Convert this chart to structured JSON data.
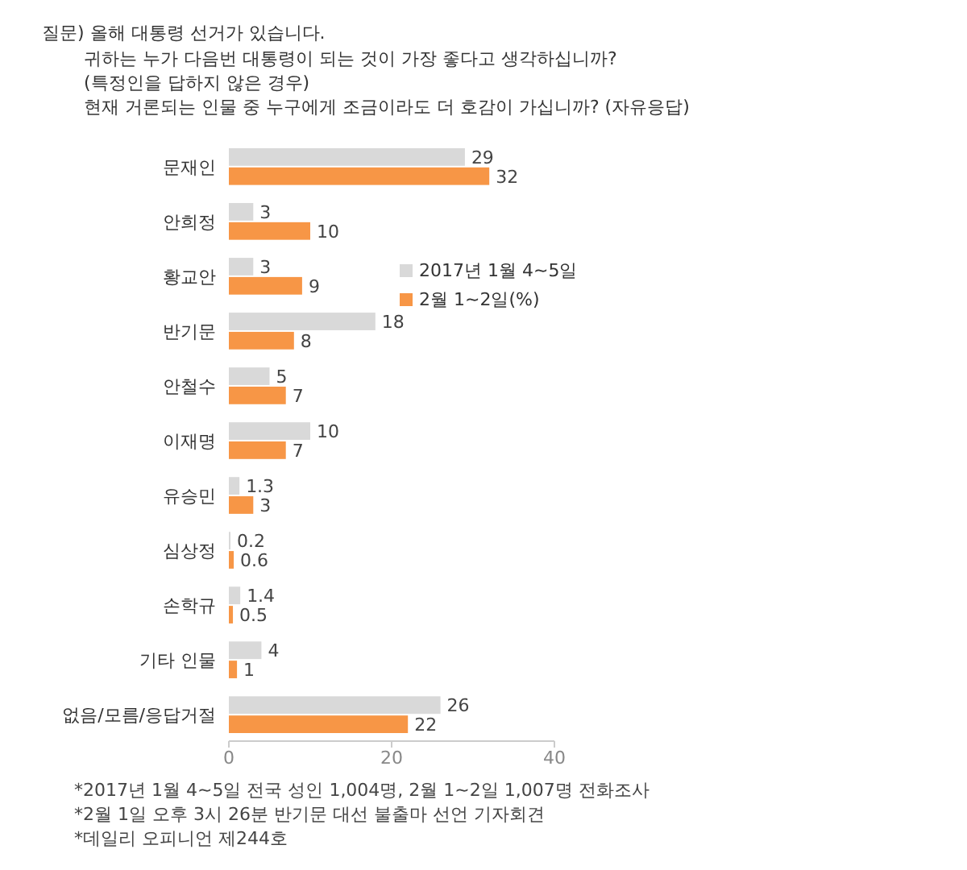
{
  "chart_data": {
    "type": "bar",
    "orientation": "horizontal",
    "title": "질문) 올해 대통령 선거가 있습니다.",
    "subtitle": "귀하는 누가 다음번 대통령이 되는 것이 가장 좋다고 생각하십니까?\n(특정인을 답하지 않은 경우)\n현재 거론되는 인물 중 누구에게 조금이라도 더 호감이 가십니까? (자유응답)",
    "categories": [
      "문재인",
      "안희정",
      "황교안",
      "반기문",
      "안철수",
      "이재명",
      "유승민",
      "심상정",
      "손학규",
      "기타 인물",
      "없음/모름/응답거절"
    ],
    "series": [
      {
        "name": "2017년 1월 4~5일",
        "color": "#d9d9d9",
        "values": [
          29,
          3,
          3,
          18,
          5,
          10,
          1.3,
          0.2,
          1.4,
          4,
          26
        ]
      },
      {
        "name": "2월 1~2일(%)",
        "color": "#f79646",
        "values": [
          32,
          10,
          9,
          8,
          7,
          7,
          3,
          0.6,
          0.5,
          1,
          22
        ]
      }
    ],
    "xlim": [
      0,
      40
    ],
    "xticks": [
      0,
      20,
      40
    ],
    "data_labels": true,
    "legend": "right",
    "grid": false,
    "annotations": [
      "*2017년 1월 4~5일 전국 성인 1,004명, 2월 1~2일 1,007명 전화조사",
      "*2월 1일 오후 3시 26분 반기문 대선 불출마 선언 기자회견",
      "*데일리 오피니언 제244호"
    ]
  }
}
